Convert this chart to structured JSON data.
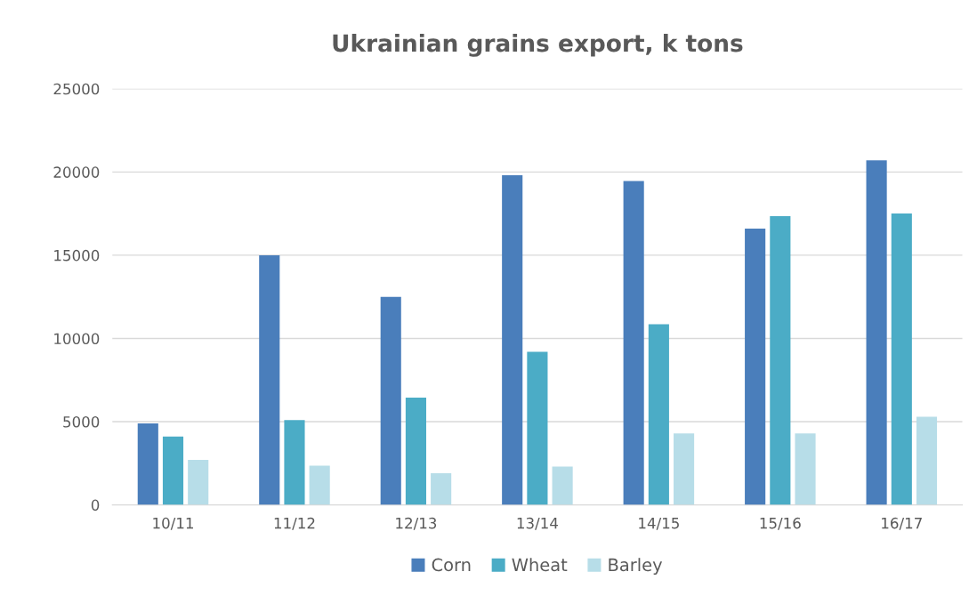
{
  "chart_data": {
    "type": "bar",
    "title": "Ukrainian grains export, k tons",
    "categories": [
      "10/11",
      "11/12",
      "12/13",
      "13/14",
      "14/15",
      "15/16",
      "16/17"
    ],
    "series": [
      {
        "name": "Corn",
        "color": "#4a7ebb",
        "values": [
          4900,
          15000,
          12500,
          19800,
          19450,
          16600,
          20700
        ]
      },
      {
        "name": "Wheat",
        "color": "#4bacc6",
        "values": [
          4100,
          5100,
          6450,
          9200,
          10850,
          17350,
          17500
        ]
      },
      {
        "name": "Barley",
        "color": "#b7dde8",
        "values": [
          2700,
          2350,
          1900,
          2300,
          4300,
          4300,
          5300
        ]
      }
    ],
    "ylim": [
      0,
      25000
    ],
    "yticks": [
      0,
      5000,
      10000,
      15000,
      20000,
      25000
    ],
    "grid": "y",
    "legend": "bottom"
  }
}
